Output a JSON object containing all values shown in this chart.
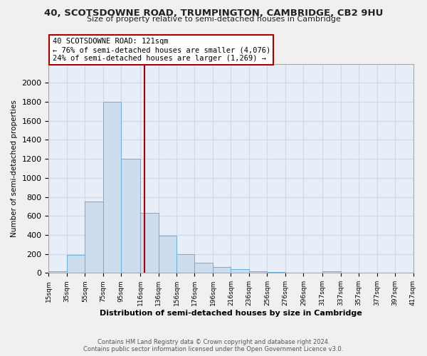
{
  "title": "40, SCOTSDOWNE ROAD, TRUMPINGTON, CAMBRIDGE, CB2 9HU",
  "subtitle": "Size of property relative to semi-detached houses in Cambridge",
  "xlabel": "Distribution of semi-detached houses by size in Cambridge",
  "ylabel": "Number of semi-detached properties",
  "property_size": 121,
  "annotation_line1": "40 SCOTSDOWNE ROAD: 121sqm",
  "annotation_line2": "← 76% of semi-detached houses are smaller (4,076)",
  "annotation_line3": "24% of semi-detached houses are larger (1,269) →",
  "bin_edges": [
    15,
    35,
    55,
    75,
    95,
    116,
    136,
    156,
    176,
    196,
    216,
    236,
    256,
    276,
    296,
    317,
    337,
    357,
    377,
    397,
    417
  ],
  "bar_heights": [
    20,
    190,
    750,
    1800,
    1200,
    630,
    390,
    200,
    105,
    65,
    40,
    20,
    10,
    5,
    3,
    15,
    2,
    1,
    0,
    0
  ],
  "bar_color": "#ccddf0",
  "bar_edge_color": "#6aaed6",
  "vline_color": "#aa0000",
  "vline_x": 121,
  "annotation_box_edge_color": "#aa0000",
  "plot_bg_color": "#e8eef8",
  "grid_color": "#d0d8e8",
  "fig_bg_color": "#f0f0f0",
  "ylim": [
    0,
    2200
  ],
  "yticks": [
    0,
    200,
    400,
    600,
    800,
    1000,
    1200,
    1400,
    1600,
    1800,
    2000
  ],
  "footer_line1": "Contains HM Land Registry data © Crown copyright and database right 2024.",
  "footer_line2": "Contains public sector information licensed under the Open Government Licence v3.0.",
  "tick_labels": [
    "15sqm",
    "35sqm",
    "55sqm",
    "75sqm",
    "95sqm",
    "116sqm",
    "136sqm",
    "156sqm",
    "176sqm",
    "196sqm",
    "216sqm",
    "236sqm",
    "256sqm",
    "276sqm",
    "296sqm",
    "317sqm",
    "337sqm",
    "357sqm",
    "377sqm",
    "397sqm",
    "417sqm"
  ]
}
